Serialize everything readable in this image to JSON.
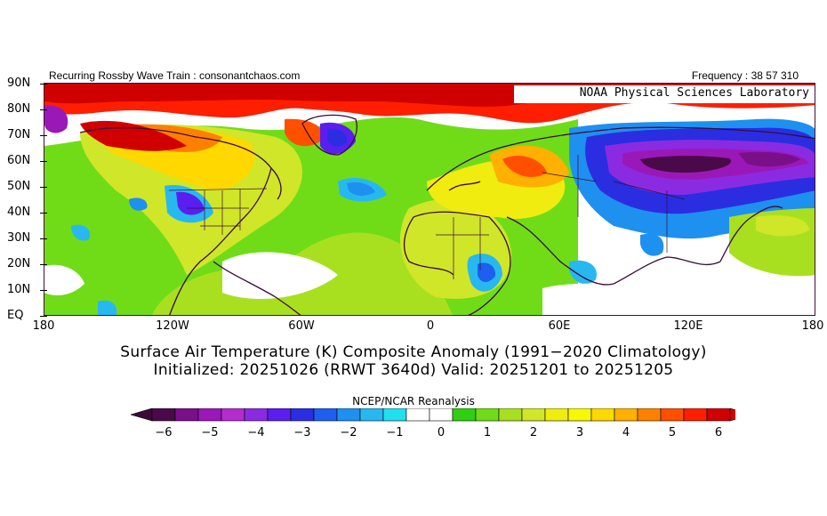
{
  "header": {
    "left_text": "Recurring Rossby Wave Train : consonantchaos.com",
    "right_text": "Frequency : 38 57 310"
  },
  "map": {
    "overlay_label": "NOAA Physical Sciences Laboratory",
    "lat_labels": [
      "90N",
      "80N",
      "70N",
      "60N",
      "50N",
      "40N",
      "30N",
      "20N",
      "10N",
      "EQ"
    ],
    "lon_labels": [
      "180",
      "120W",
      "60W",
      "0",
      "60E",
      "120E",
      "180"
    ]
  },
  "titles": {
    "line1": "Surface Air Temperature (K) Composite Anomaly (1991−2020 Climatology)",
    "line2": "Initialized: 20251026 (RRWT 3640d) Valid: 20251201 to 20251205"
  },
  "colorbar": {
    "label": "NCEP/NCAR Reanalysis",
    "tick_labels": [
      "−6",
      "−5",
      "−4",
      "−3",
      "−2",
      "−1",
      "0",
      "1",
      "2",
      "3",
      "4",
      "5",
      "6"
    ],
    "colors": [
      "#4a0a4a",
      "#7a0f8a",
      "#9b18b8",
      "#b42bd0",
      "#8a2be2",
      "#5a1ef0",
      "#2a2ee0",
      "#1e5ff0",
      "#1e90f0",
      "#28b8f0",
      "#20e0f0",
      "#ffffff",
      "#ffffff",
      "#30d010",
      "#70dc18",
      "#a8e020",
      "#d0e628",
      "#f0ec10",
      "#f8f800",
      "#ffd800",
      "#ffb000",
      "#ff8000",
      "#ff5000",
      "#ff1e00",
      "#d00000"
    ],
    "arrow_low": "#3a0a3a",
    "arrow_high": "#d80000"
  }
}
